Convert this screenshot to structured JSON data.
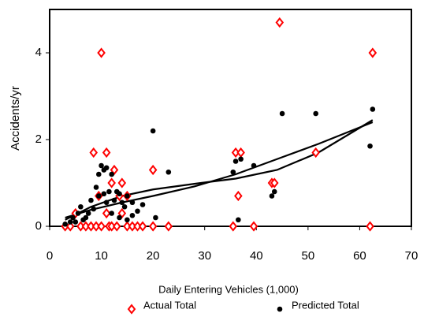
{
  "chart_data": {
    "type": "scatter",
    "x_label": "Daily Entering Vehicles (1,000)",
    "y_label": "Accidents/yr",
    "xlim": [
      0,
      70
    ],
    "xticks": [
      0,
      10,
      20,
      30,
      40,
      50,
      60,
      70
    ],
    "ylim": [
      0,
      5
    ],
    "yticks": [
      0,
      2,
      4
    ],
    "grid": false,
    "legend": "bottom",
    "series": [
      {
        "name": "Actual Total",
        "color": "#ff0000",
        "marker": "diamond",
        "x": [
          3,
          4,
          5,
          6,
          7,
          8,
          8.5,
          9,
          9.5,
          10,
          10,
          11,
          11,
          11.5,
          12,
          12.5,
          12,
          13,
          13.5,
          14,
          14,
          15,
          15,
          16,
          17,
          18,
          20,
          20,
          23,
          35.5,
          36,
          36.5,
          37,
          39.5,
          43,
          43.5,
          44.5,
          51.5,
          62,
          62.5
        ],
        "values": [
          0,
          0,
          0.3,
          0,
          0,
          0,
          1.7,
          0,
          0.7,
          0,
          4,
          1.7,
          0.3,
          0,
          1,
          1.3,
          0,
          0,
          0.7,
          1,
          0.3,
          0,
          0.7,
          0,
          0,
          0,
          1.3,
          0,
          0,
          0,
          1.7,
          0.7,
          1.7,
          0,
          1,
          1,
          4.7,
          1.7,
          0,
          4
        ]
      },
      {
        "name": "Predicted Total",
        "color": "#000000",
        "marker": "circle",
        "x": [
          3,
          4,
          4.5,
          5,
          5.5,
          6,
          6.5,
          7,
          7.5,
          8,
          8.5,
          9,
          9.5,
          9.5,
          10,
          10.5,
          10.5,
          11,
          11,
          11.5,
          12,
          12,
          12.5,
          13,
          13.5,
          13.5,
          14,
          14.5,
          15,
          15,
          16,
          16,
          17,
          18,
          20,
          20.5,
          23,
          35.5,
          36,
          36.5,
          37,
          39.5,
          43,
          43.5,
          45,
          51.5,
          62,
          62.5
        ],
        "values": [
          0.05,
          0.1,
          0.2,
          0.1,
          0.3,
          0.45,
          0.15,
          0.2,
          0.3,
          0.6,
          0.4,
          0.9,
          0.7,
          1.2,
          1.4,
          1.3,
          0.75,
          0.55,
          1.35,
          0.8,
          1.2,
          0.3,
          0.6,
          0.8,
          0.2,
          0.75,
          0.55,
          0.45,
          0.7,
          0.15,
          0.25,
          0.55,
          0.35,
          0.5,
          2.2,
          0.2,
          1.25,
          1.25,
          1.5,
          0.15,
          1.55,
          1.4,
          0.7,
          0.8,
          2.6,
          2.6,
          1.85,
          2.7
        ]
      }
    ],
    "trend_lines": [
      {
        "color": "#000000",
        "x": [
          3,
          8,
          14,
          20,
          28,
          36,
          44,
          52,
          62.5
        ],
        "values": [
          0.15,
          0.45,
          0.7,
          0.85,
          0.98,
          1.1,
          1.3,
          1.7,
          2.45
        ]
      },
      {
        "color": "#000000",
        "x": [
          3,
          8,
          14,
          20,
          28,
          36,
          44,
          52,
          62.5
        ],
        "values": [
          0.2,
          0.38,
          0.55,
          0.7,
          0.92,
          1.2,
          1.55,
          1.9,
          2.4
        ]
      }
    ]
  }
}
